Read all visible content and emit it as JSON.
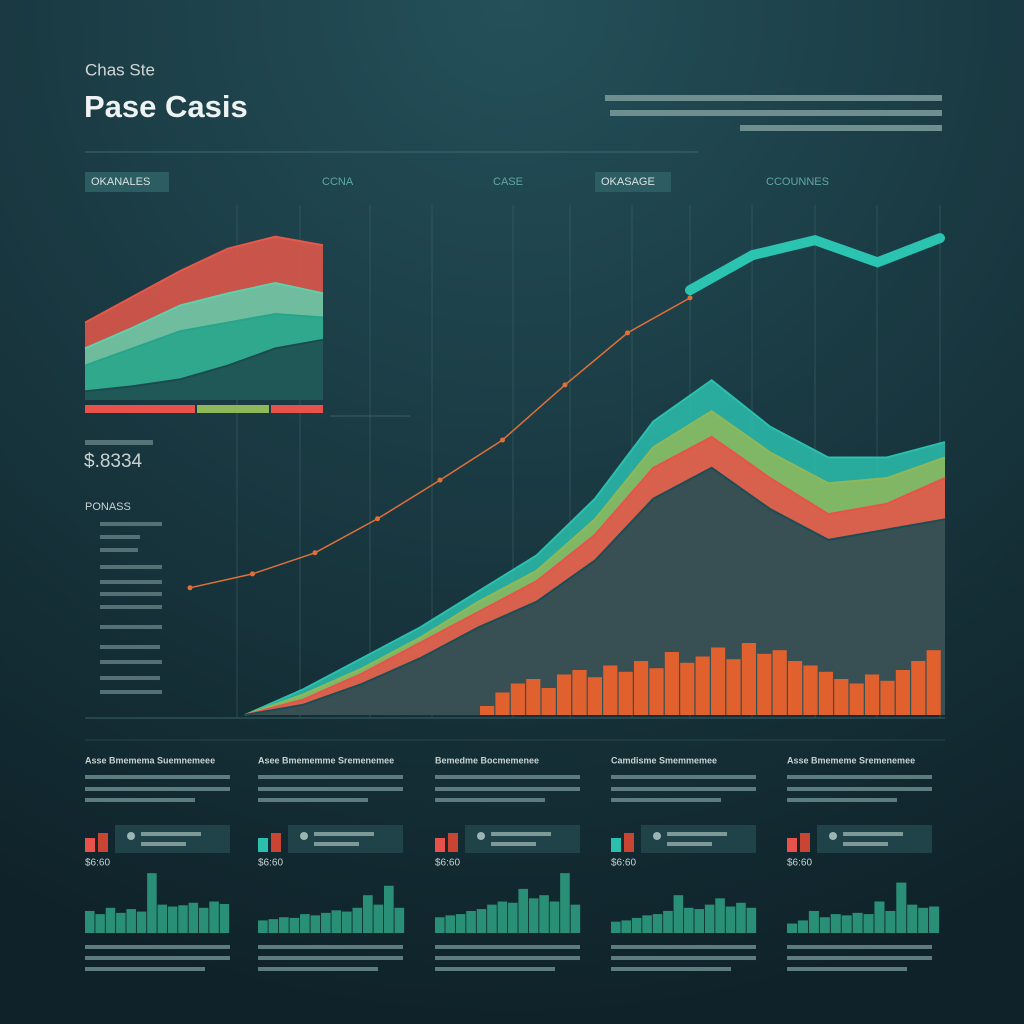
{
  "header": {
    "kicker": "Chas Ste",
    "title": "Pase Casis"
  },
  "tabs": [
    "OKANALES",
    "CCNA",
    "CASE",
    "OKASAGE",
    "CCOUNNES"
  ],
  "stat": {
    "value": "$.8334",
    "label": "PONASS"
  },
  "cards": [
    {
      "heading": "Asse Bmemema Suemnemeee",
      "stat": "$6:60"
    },
    {
      "heading": "Asee Bmememme Sremenemee",
      "stat": "$6:60"
    },
    {
      "heading": "Bemedme Bocmemenee",
      "stat": "$6:60"
    },
    {
      "heading": "Camdisme Smemmemee",
      "stat": "$6:60"
    },
    {
      "heading": "Asse Bmememe Sremenemee",
      "stat": "$6:60"
    }
  ],
  "chart_data": [
    {
      "type": "area",
      "categories": [
        null,
        null,
        null,
        null,
        null,
        null
      ],
      "ylim": [
        0,
        100
      ],
      "series": [
        {
          "name": null,
          "color": "#e8584a",
          "values": [
            45,
            60,
            75,
            88,
            95,
            90
          ]
        },
        {
          "name": null,
          "color": "#5fcfad",
          "values": [
            30,
            42,
            55,
            62,
            68,
            62
          ]
        },
        {
          "name": null,
          "color": "#26a58a",
          "values": [
            20,
            30,
            40,
            45,
            50,
            48
          ]
        },
        {
          "name": null,
          "color": "#1d4a4f",
          "values": [
            5,
            8,
            12,
            20,
            30,
            35
          ]
        }
      ]
    },
    {
      "type": "area",
      "categories": [
        null,
        null,
        null,
        null,
        null,
        null,
        null,
        null,
        null,
        null,
        null,
        null,
        null
      ],
      "ylim": [
        0,
        100
      ],
      "series": [
        {
          "name": null,
          "color": "#2bbfae",
          "values": [
            0,
            5,
            11,
            17,
            24,
            31,
            42,
            57,
            65,
            56,
            50,
            50,
            53
          ]
        },
        {
          "name": null,
          "color": "#8fb85a",
          "values": [
            0,
            4,
            9,
            15,
            22,
            28,
            38,
            52,
            59,
            51,
            45,
            46,
            50
          ]
        },
        {
          "name": null,
          "color": "#e8524a",
          "values": [
            0,
            3,
            8,
            14,
            20,
            26,
            35,
            48,
            54,
            46,
            39,
            41,
            46
          ]
        },
        {
          "name": null,
          "color": "#1c4d55",
          "values": [
            0,
            2,
            6,
            11,
            17,
            22,
            30,
            42,
            48,
            40,
            34,
            36,
            38
          ]
        }
      ]
    },
    {
      "type": "line",
      "categories": [
        null,
        null,
        null,
        null,
        null,
        null,
        null,
        null,
        null,
        null,
        null,
        null,
        null
      ],
      "ylim": [
        0,
        100
      ],
      "series": [
        {
          "name": null,
          "color": "#e0703a",
          "values": [
            24.7,
            27.4,
            31.5,
            38.1,
            45.6,
            53.4,
            64.1,
            74.2,
            81,
            null,
            null,
            null,
            null
          ]
        },
        {
          "name": null,
          "color": "#2bc4b0",
          "values": [
            null,
            null,
            null,
            null,
            null,
            null,
            null,
            null,
            82.5,
            89.3,
            92.2,
            87.9,
            92.6
          ]
        }
      ]
    },
    {
      "type": "bar",
      "color": "#e0602e",
      "ylim": [
        0,
        100
      ],
      "values": [
        10,
        25,
        35,
        40,
        30,
        45,
        50,
        42,
        55,
        48,
        60,
        52,
        70,
        58,
        65,
        75,
        62,
        80,
        68,
        72,
        60,
        55,
        48,
        40,
        35,
        45,
        38,
        50,
        60,
        72
      ]
    },
    {
      "type": "bar",
      "color": "#2a8f77",
      "ylim": [
        0,
        100
      ],
      "values": [
        35,
        30,
        40,
        32,
        38,
        34,
        95,
        45,
        42,
        44,
        48,
        40,
        50,
        46
      ]
    },
    {
      "type": "bar",
      "color": "#2a8f77",
      "ylim": [
        0,
        100
      ],
      "values": [
        20,
        22,
        25,
        24,
        30,
        28,
        32,
        36,
        34,
        40,
        60,
        45,
        75,
        40
      ]
    },
    {
      "type": "bar",
      "color": "#2a8f77",
      "ylim": [
        0,
        100
      ],
      "values": [
        25,
        28,
        30,
        35,
        38,
        45,
        50,
        48,
        70,
        55,
        60,
        50,
        95,
        45
      ]
    },
    {
      "type": "bar",
      "color": "#2a8f77",
      "ylim": [
        0,
        100
      ],
      "values": [
        18,
        20,
        24,
        28,
        30,
        35,
        60,
        40,
        38,
        45,
        55,
        42,
        48,
        40
      ]
    },
    {
      "type": "bar",
      "color": "#2a8f77",
      "ylim": [
        0,
        100
      ],
      "values": [
        15,
        20,
        35,
        25,
        30,
        28,
        32,
        30,
        50,
        35,
        80,
        45,
        40,
        42
      ]
    }
  ]
}
